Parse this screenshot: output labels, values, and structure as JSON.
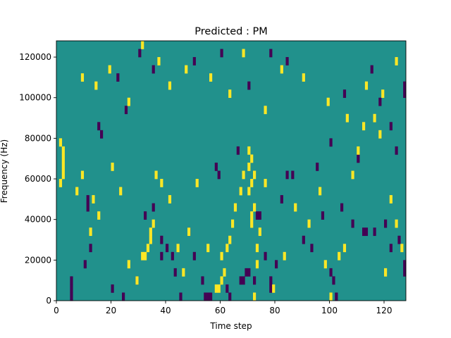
{
  "chart_data": {
    "type": "heatmap",
    "title": "Predicted : PM",
    "xlabel": "Time step",
    "ylabel": "Frequency (Hz)",
    "xlim": [
      0,
      128
    ],
    "ylim": [
      0,
      128000
    ],
    "x_ticks": [
      0,
      20,
      40,
      60,
      80,
      100,
      120
    ],
    "y_ticks": [
      0,
      20000,
      40000,
      60000,
      80000,
      100000,
      120000
    ],
    "x_tick_labels": [
      "0",
      "20",
      "40",
      "60",
      "80",
      "100",
      "120"
    ],
    "y_tick_labels": [
      "0",
      "20000",
      "40000",
      "60000",
      "80000",
      "100000",
      "120000"
    ],
    "grid": false,
    "colormap": "viridis",
    "background_value": 0,
    "cell_width_steps": 1,
    "cell_height_hz": 4000,
    "colors": {
      "background": "#21918c",
      "low": "#440154",
      "high": "#fde725"
    },
    "low_cells": [
      [
        5,
        8000
      ],
      [
        5,
        4000
      ],
      [
        5,
        0
      ],
      [
        10,
        16000
      ],
      [
        12,
        24000
      ],
      [
        11,
        48000
      ],
      [
        11,
        44000
      ],
      [
        16,
        80000
      ],
      [
        20,
        4000
      ],
      [
        24,
        0
      ],
      [
        29,
        8000
      ],
      [
        32,
        40000
      ],
      [
        35,
        44000
      ],
      [
        38,
        28000
      ],
      [
        38,
        20000
      ],
      [
        40,
        24000
      ],
      [
        42,
        20000
      ],
      [
        43,
        12000
      ],
      [
        45,
        0
      ],
      [
        48,
        32000
      ],
      [
        50,
        20000
      ],
      [
        53,
        8000
      ],
      [
        54,
        0
      ],
      [
        55,
        0
      ],
      [
        56,
        0
      ],
      [
        58,
        64000
      ],
      [
        59,
        60000
      ],
      [
        62,
        4000
      ],
      [
        63,
        0
      ],
      [
        67,
        8000
      ],
      [
        68,
        8000
      ],
      [
        69,
        12000
      ],
      [
        70,
        12000
      ],
      [
        72,
        8000
      ],
      [
        73,
        40000
      ],
      [
        74,
        40000
      ],
      [
        76,
        20000
      ],
      [
        78,
        4000
      ],
      [
        78,
        8000
      ],
      [
        80,
        16000
      ],
      [
        82,
        48000
      ],
      [
        84,
        60000
      ],
      [
        86,
        60000
      ],
      [
        90,
        28000
      ],
      [
        93,
        24000
      ],
      [
        97,
        40000
      ],
      [
        100,
        12000
      ],
      [
        101,
        8000
      ],
      [
        102,
        0
      ],
      [
        104,
        44000
      ],
      [
        108,
        36000
      ],
      [
        112,
        32000
      ],
      [
        113,
        32000
      ],
      [
        116,
        32000
      ],
      [
        120,
        36000
      ],
      [
        122,
        24000
      ],
      [
        125,
        28000
      ],
      [
        127,
        12000
      ],
      [
        127,
        16000
      ],
      [
        127,
        100000
      ],
      [
        127,
        104000
      ],
      [
        15,
        84000
      ],
      [
        22,
        108000
      ],
      [
        25,
        92000
      ],
      [
        30,
        120000
      ],
      [
        35,
        112000
      ],
      [
        50,
        116000
      ],
      [
        60,
        120000
      ],
      [
        66,
        72000
      ],
      [
        70,
        104000
      ],
      [
        78,
        120000
      ],
      [
        84,
        116000
      ],
      [
        95,
        64000
      ],
      [
        100,
        76000
      ],
      [
        105,
        100000
      ],
      [
        110,
        68000
      ],
      [
        115,
        112000
      ],
      [
        118,
        96000
      ],
      [
        122,
        84000
      ],
      [
        124,
        72000
      ]
    ],
    "high_cells": [
      [
        1,
        56000
      ],
      [
        2,
        60000
      ],
      [
        2,
        64000
      ],
      [
        2,
        68000
      ],
      [
        2,
        72000
      ],
      [
        1,
        76000
      ],
      [
        7,
        52000
      ],
      [
        9,
        60000
      ],
      [
        12,
        32000
      ],
      [
        13,
        48000
      ],
      [
        15,
        40000
      ],
      [
        20,
        64000
      ],
      [
        23,
        52000
      ],
      [
        26,
        16000
      ],
      [
        29,
        8000
      ],
      [
        31,
        20000
      ],
      [
        32,
        20000
      ],
      [
        33,
        24000
      ],
      [
        34,
        28000
      ],
      [
        34,
        32000
      ],
      [
        35,
        36000
      ],
      [
        36,
        60000
      ],
      [
        38,
        56000
      ],
      [
        41,
        48000
      ],
      [
        44,
        24000
      ],
      [
        46,
        12000
      ],
      [
        48,
        32000
      ],
      [
        51,
        56000
      ],
      [
        55,
        24000
      ],
      [
        58,
        4000
      ],
      [
        59,
        4000
      ],
      [
        60,
        8000
      ],
      [
        61,
        12000
      ],
      [
        60,
        20000
      ],
      [
        62,
        24000
      ],
      [
        63,
        28000
      ],
      [
        64,
        36000
      ],
      [
        65,
        44000
      ],
      [
        67,
        52000
      ],
      [
        68,
        60000
      ],
      [
        70,
        64000
      ],
      [
        71,
        68000
      ],
      [
        70,
        72000
      ],
      [
        72,
        60000
      ],
      [
        71,
        56000
      ],
      [
        70,
        52000
      ],
      [
        72,
        44000
      ],
      [
        71,
        40000
      ],
      [
        71,
        36000
      ],
      [
        73,
        24000
      ],
      [
        73,
        16000
      ],
      [
        72,
        0
      ],
      [
        74,
        32000
      ],
      [
        76,
        56000
      ],
      [
        79,
        4000
      ],
      [
        83,
        20000
      ],
      [
        87,
        44000
      ],
      [
        92,
        36000
      ],
      [
        96,
        52000
      ],
      [
        98,
        16000
      ],
      [
        100,
        0
      ],
      [
        103,
        20000
      ],
      [
        105,
        24000
      ],
      [
        108,
        60000
      ],
      [
        110,
        72000
      ],
      [
        112,
        84000
      ],
      [
        116,
        88000
      ],
      [
        118,
        80000
      ],
      [
        120,
        12000
      ],
      [
        122,
        48000
      ],
      [
        124,
        36000
      ],
      [
        126,
        24000
      ],
      [
        9,
        108000
      ],
      [
        14,
        104000
      ],
      [
        19,
        112000
      ],
      [
        26,
        96000
      ],
      [
        31,
        124000
      ],
      [
        37,
        116000
      ],
      [
        41,
        104000
      ],
      [
        47,
        112000
      ],
      [
        56,
        108000
      ],
      [
        63,
        100000
      ],
      [
        68,
        120000
      ],
      [
        76,
        92000
      ],
      [
        82,
        112000
      ],
      [
        90,
        108000
      ],
      [
        99,
        96000
      ],
      [
        106,
        88000
      ],
      [
        113,
        104000
      ],
      [
        119,
        100000
      ],
      [
        124,
        116000
      ]
    ]
  }
}
